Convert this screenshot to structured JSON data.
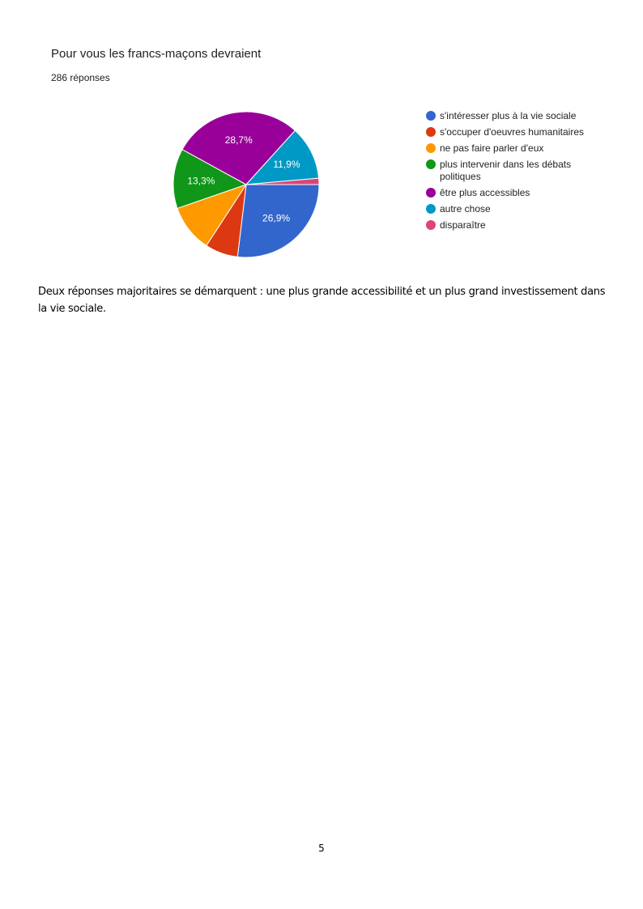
{
  "page": {
    "caption": "Deux réponses majoritaires se démarquent : une plus grande accessibilité et un plus grand investissement dans la vie sociale.",
    "page_number": "5"
  },
  "chart_data": {
    "type": "pie",
    "title": "Pour vous les francs-maçons devraient",
    "subtitle": "286 réponses",
    "legend_position": "right",
    "categories": [
      "s'intéresser plus à la vie sociale",
      "s'occuper d'oeuvres humanitaires",
      "ne pas faire parler d'eux",
      "plus intervenir dans les débats politiques",
      "être plus accessibles",
      "autre chose",
      "disparaître"
    ],
    "values": [
      26.9,
      7.3,
      10.5,
      13.3,
      28.7,
      11.9,
      1.4
    ],
    "labels": [
      "26,9%",
      null,
      null,
      "13,3%",
      "28,7%",
      "11,9%",
      null
    ],
    "colors": [
      "#3366cc",
      "#dc3912",
      "#ff9900",
      "#109618",
      "#990099",
      "#0099c6",
      "#dd4477"
    ],
    "unit": "%"
  }
}
